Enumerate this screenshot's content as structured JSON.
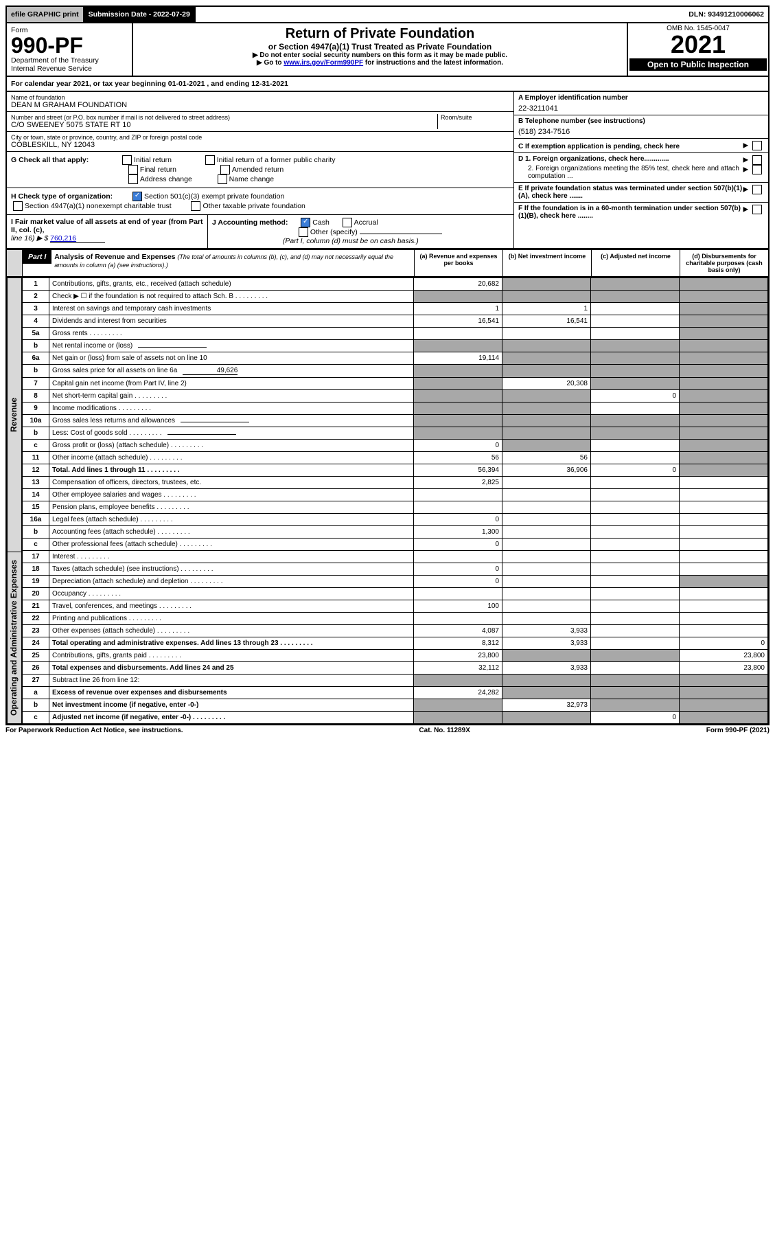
{
  "topbar": {
    "efile": "efile GRAPHIC print",
    "submission_label": "Submission Date - 2022-07-29",
    "dln": "DLN: 93491210006062"
  },
  "header": {
    "form_label": "Form",
    "form_number": "990-PF",
    "dept": "Department of the Treasury",
    "irs": "Internal Revenue Service",
    "title": "Return of Private Foundation",
    "subtitle": "or Section 4947(a)(1) Trust Treated as Private Foundation",
    "instr1": "▶ Do not enter social security numbers on this form as it may be made public.",
    "instr2_pre": "▶ Go to ",
    "instr2_link": "www.irs.gov/Form990PF",
    "instr2_post": " for instructions and the latest information.",
    "omb": "OMB No. 1545-0047",
    "year": "2021",
    "inspection": "Open to Public Inspection"
  },
  "cal_year": {
    "text_pre": "For calendar year 2021, or tax year beginning ",
    "begin": "01-01-2021",
    "text_mid": " , and ending ",
    "end": "12-31-2021"
  },
  "info": {
    "name_label": "Name of foundation",
    "name": "DEAN M GRAHAM FOUNDATION",
    "addr_label": "Number and street (or P.O. box number if mail is not delivered to street address)",
    "addr": "C/O SWEENEY 5075 STATE RT 10",
    "room_label": "Room/suite",
    "city_label": "City or town, state or province, country, and ZIP or foreign postal code",
    "city": "COBLESKILL, NY  12043",
    "a_label": "A Employer identification number",
    "a_val": "22-3211041",
    "b_label": "B Telephone number (see instructions)",
    "b_val": "(518) 234-7516",
    "c_label": "C If exemption application is pending, check here",
    "d1_label": "D 1. Foreign organizations, check here.............",
    "d2_label": "2. Foreign organizations meeting the 85% test, check here and attach computation ...",
    "e_label": "E  If private foundation status was terminated under section 507(b)(1)(A), check here .......",
    "f_label": "F  If the foundation is in a 60-month termination under section 507(b)(1)(B), check here ........"
  },
  "g": {
    "label": "G Check all that apply:",
    "opts": [
      "Initial return",
      "Final return",
      "Address change",
      "Initial return of a former public charity",
      "Amended return",
      "Name change"
    ]
  },
  "h": {
    "label": "H Check type of organization:",
    "opt1": "Section 501(c)(3) exempt private foundation",
    "opt2": "Section 4947(a)(1) nonexempt charitable trust",
    "opt3": "Other taxable private foundation"
  },
  "i": {
    "label": "I Fair market value of all assets at end of year (from Part II, col. (c),",
    "line16": "line 16) ▶ $",
    "val": "760,216"
  },
  "j": {
    "label": "J Accounting method:",
    "cash": "Cash",
    "accrual": "Accrual",
    "other": "Other (specify)",
    "note": "(Part I, column (d) must be on cash basis.)"
  },
  "part1": {
    "tag": "Part I",
    "title": "Analysis of Revenue and Expenses",
    "note": "(The total of amounts in columns (b), (c), and (d) may not necessarily equal the amounts in column (a) (see instructions).)",
    "col_a": "(a) Revenue and expenses per books",
    "col_b": "(b) Net investment income",
    "col_c": "(c) Adjusted net income",
    "col_d": "(d) Disbursements for charitable purposes (cash basis only)"
  },
  "vert_labels": {
    "revenue": "Revenue",
    "expenses": "Operating and Administrative Expenses"
  },
  "rows": [
    {
      "n": "1",
      "d": "Contributions, gifts, grants, etc., received (attach schedule)",
      "a": "20,682",
      "ga": false,
      "gb": true,
      "gc": true,
      "gd": true
    },
    {
      "n": "2",
      "d": "Check ▶ ☐ if the foundation is not required to attach Sch. B",
      "dots": true,
      "ga": true,
      "gb": true,
      "gc": true,
      "gd": true
    },
    {
      "n": "3",
      "d": "Interest on savings and temporary cash investments",
      "a": "1",
      "b": "1",
      "gd": true
    },
    {
      "n": "4",
      "d": "Dividends and interest from securities",
      "a": "16,541",
      "b": "16,541",
      "gd": true
    },
    {
      "n": "5a",
      "d": "Gross rents",
      "dots": true,
      "gd": true
    },
    {
      "n": "b",
      "d": "Net rental income or (loss)",
      "underline": true,
      "ga": true,
      "gb": true,
      "gc": true,
      "gd": true
    },
    {
      "n": "6a",
      "d": "Net gain or (loss) from sale of assets not on line 10",
      "a": "19,114",
      "gb": true,
      "gc": true,
      "gd": true
    },
    {
      "n": "b",
      "d": "Gross sales price for all assets on line 6a",
      "inline_val": "49,626",
      "ga": true,
      "gb": true,
      "gc": true,
      "gd": true
    },
    {
      "n": "7",
      "d": "Capital gain net income (from Part IV, line 2)",
      "b": "20,308",
      "ga": true,
      "gc": true,
      "gd": true
    },
    {
      "n": "8",
      "d": "Net short-term capital gain",
      "dots": true,
      "c": "0",
      "ga": true,
      "gb": true,
      "gd": true
    },
    {
      "n": "9",
      "d": "Income modifications",
      "dots": true,
      "ga": true,
      "gb": true,
      "gd": true
    },
    {
      "n": "10a",
      "d": "Gross sales less returns and allowances",
      "underline": true,
      "ga": true,
      "gb": true,
      "gc": true,
      "gd": true
    },
    {
      "n": "b",
      "d": "Less: Cost of goods sold",
      "dots": true,
      "underline": true,
      "ga": true,
      "gb": true,
      "gc": true,
      "gd": true
    },
    {
      "n": "c",
      "d": "Gross profit or (loss) (attach schedule)",
      "dots": true,
      "a": "0",
      "gb": true,
      "gd": true
    },
    {
      "n": "11",
      "d": "Other income (attach schedule)",
      "dots": true,
      "a": "56",
      "b": "56",
      "gd": true
    },
    {
      "n": "12",
      "d": "Total. Add lines 1 through 11",
      "dots": true,
      "bold": true,
      "a": "56,394",
      "b": "36,906",
      "c": "0",
      "gd": true
    },
    {
      "n": "13",
      "d": "Compensation of officers, directors, trustees, etc.",
      "a": "2,825"
    },
    {
      "n": "14",
      "d": "Other employee salaries and wages",
      "dots": true
    },
    {
      "n": "15",
      "d": "Pension plans, employee benefits",
      "dots": true
    },
    {
      "n": "16a",
      "d": "Legal fees (attach schedule)",
      "dots": true,
      "a": "0"
    },
    {
      "n": "b",
      "d": "Accounting fees (attach schedule)",
      "dots": true,
      "a": "1,300"
    },
    {
      "n": "c",
      "d": "Other professional fees (attach schedule)",
      "dots": true,
      "a": "0"
    },
    {
      "n": "17",
      "d": "Interest",
      "dots": true
    },
    {
      "n": "18",
      "d": "Taxes (attach schedule) (see instructions)",
      "dots": true,
      "a": "0"
    },
    {
      "n": "19",
      "d": "Depreciation (attach schedule) and depletion",
      "dots": true,
      "a": "0",
      "gd": true
    },
    {
      "n": "20",
      "d": "Occupancy",
      "dots": true
    },
    {
      "n": "21",
      "d": "Travel, conferences, and meetings",
      "dots": true,
      "a": "100"
    },
    {
      "n": "22",
      "d": "Printing and publications",
      "dots": true
    },
    {
      "n": "23",
      "d": "Other expenses (attach schedule)",
      "dots": true,
      "a": "4,087",
      "b": "3,933"
    },
    {
      "n": "24",
      "d": "Total operating and administrative expenses. Add lines 13 through 23",
      "dots": true,
      "bold": true,
      "a": "8,312",
      "b": "3,933",
      "c": "",
      "dval": "0"
    },
    {
      "n": "25",
      "d": "Contributions, gifts, grants paid",
      "dots": true,
      "a": "23,800",
      "gb": true,
      "gc": true,
      "dval": "23,800"
    },
    {
      "n": "26",
      "d": "Total expenses and disbursements. Add lines 24 and 25",
      "bold": true,
      "a": "32,112",
      "b": "3,933",
      "c": "",
      "dval": "23,800"
    },
    {
      "n": "27",
      "d": "Subtract line 26 from line 12:",
      "gb": true,
      "gc": true,
      "gd": true,
      "ga": true
    },
    {
      "n": "a",
      "d": "Excess of revenue over expenses and disbursements",
      "bold": true,
      "a": "24,282",
      "gb": true,
      "gc": true,
      "gd": true
    },
    {
      "n": "b",
      "d": "Net investment income (if negative, enter -0-)",
      "bold": true,
      "b": "32,973",
      "ga": true,
      "gc": true,
      "gd": true
    },
    {
      "n": "c",
      "d": "Adjusted net income (if negative, enter -0-)",
      "dots": true,
      "bold": true,
      "c": "0",
      "ga": true,
      "gb": true,
      "gd": true
    }
  ],
  "footer": {
    "left": "For Paperwork Reduction Act Notice, see instructions.",
    "mid": "Cat. No. 11289X",
    "right": "Form 990-PF (2021)"
  },
  "colors": {
    "gray_cell": "#a8a8a8",
    "vert_bg": "#d8d8d8",
    "link": "#0000cc",
    "check_blue": "#3b7dd8"
  }
}
